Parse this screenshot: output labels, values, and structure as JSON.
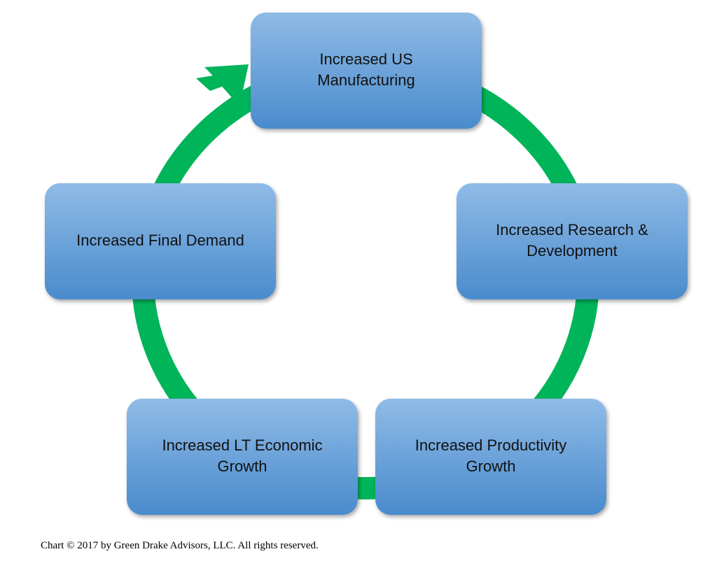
{
  "nodes": [
    {
      "lines": [
        "Increased US",
        "Manufacturing"
      ]
    },
    {
      "lines": [
        "Increased Research &",
        "Development"
      ]
    },
    {
      "lines": [
        "Increased Productivity",
        "Growth"
      ]
    },
    {
      "lines": [
        "Increased LT Economic",
        "Growth"
      ]
    },
    {
      "lines": [
        "Increased Final Demand"
      ]
    }
  ],
  "footer": "Chart © 2017 by Green Drake Advisors, LLC.  All rights reserved."
}
